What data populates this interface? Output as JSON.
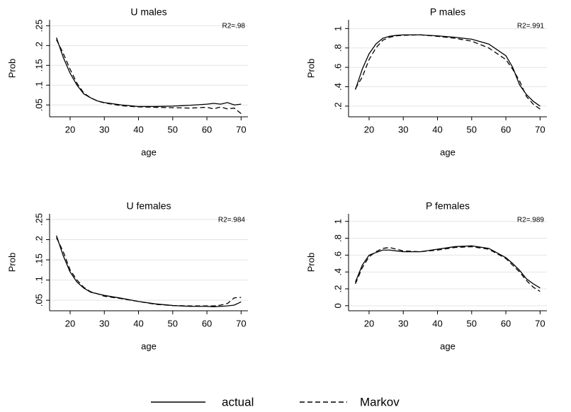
{
  "chart_data": [
    {
      "type": "line",
      "title": "U males",
      "annotation": "R2=.98",
      "xlabel": "age",
      "ylabel": "Prob",
      "x": [
        16,
        18,
        20,
        22,
        24,
        26,
        28,
        30,
        35,
        40,
        45,
        50,
        55,
        60,
        62,
        64,
        66,
        68,
        70
      ],
      "series": [
        {
          "name": "actual",
          "color": "#000000",
          "dash": "solid",
          "values": [
            0.22,
            0.17,
            0.13,
            0.1,
            0.078,
            0.068,
            0.06,
            0.056,
            0.05,
            0.046,
            0.046,
            0.047,
            0.049,
            0.052,
            0.054,
            0.052,
            0.056,
            0.05,
            0.052
          ]
        },
        {
          "name": "Markov",
          "color": "#000000",
          "dash": "dashed",
          "values": [
            0.215,
            0.18,
            0.14,
            0.105,
            0.08,
            0.068,
            0.06,
            0.055,
            0.048,
            0.045,
            0.044,
            0.043,
            0.042,
            0.044,
            0.04,
            0.045,
            0.04,
            0.042,
            0.028
          ]
        }
      ],
      "xlim": [
        14,
        72
      ],
      "xticks": [
        20,
        30,
        40,
        50,
        60,
        70
      ],
      "ylim": [
        0.02,
        0.265
      ],
      "yticks": [
        {
          "value": 0.05,
          "label": ".05"
        },
        {
          "value": 0.1,
          "label": ".1"
        },
        {
          "value": 0.15,
          "label": ".15"
        },
        {
          "value": 0.2,
          "label": ".2"
        },
        {
          "value": 0.25,
          "label": ".25"
        }
      ],
      "grid": true
    },
    {
      "type": "line",
      "title": "P males",
      "annotation": "R2=.991",
      "xlabel": "age",
      "ylabel": "Prob",
      "x": [
        16,
        18,
        20,
        22,
        24,
        26,
        28,
        30,
        35,
        40,
        45,
        50,
        55,
        60,
        62,
        64,
        66,
        68,
        70
      ],
      "series": [
        {
          "name": "actual",
          "color": "#000000",
          "dash": "solid",
          "values": [
            0.37,
            0.58,
            0.74,
            0.84,
            0.9,
            0.92,
            0.93,
            0.935,
            0.935,
            0.925,
            0.91,
            0.89,
            0.84,
            0.72,
            0.6,
            0.42,
            0.32,
            0.25,
            0.2
          ]
        },
        {
          "name": "Markov",
          "color": "#000000",
          "dash": "dashed",
          "values": [
            0.38,
            0.5,
            0.68,
            0.8,
            0.88,
            0.91,
            0.925,
            0.93,
            0.935,
            0.92,
            0.9,
            0.87,
            0.8,
            0.68,
            0.58,
            0.46,
            0.3,
            0.22,
            0.17
          ]
        }
      ],
      "xlim": [
        14,
        72
      ],
      "xticks": [
        20,
        30,
        40,
        50,
        60,
        70
      ],
      "ylim": [
        0.09,
        1.09
      ],
      "yticks": [
        {
          "value": 0.2,
          "label": ".2"
        },
        {
          "value": 0.4,
          "label": ".4"
        },
        {
          "value": 0.6,
          "label": ".6"
        },
        {
          "value": 0.8,
          "label": ".8"
        },
        1
      ],
      "grid": true
    },
    {
      "type": "line",
      "title": "U females",
      "annotation": "R2=.984",
      "xlabel": "age",
      "ylabel": "Prob",
      "x": [
        16,
        18,
        20,
        22,
        24,
        26,
        28,
        30,
        35,
        40,
        45,
        50,
        55,
        60,
        62,
        64,
        66,
        68,
        70
      ],
      "series": [
        {
          "name": "actual",
          "color": "#000000",
          "dash": "solid",
          "values": [
            0.21,
            0.16,
            0.12,
            0.095,
            0.08,
            0.07,
            0.066,
            0.062,
            0.055,
            0.047,
            0.041,
            0.037,
            0.035,
            0.035,
            0.034,
            0.035,
            0.036,
            0.038,
            0.046
          ]
        },
        {
          "name": "Markov",
          "color": "#000000",
          "dash": "dashed",
          "values": [
            0.205,
            0.17,
            0.125,
            0.1,
            0.082,
            0.071,
            0.066,
            0.06,
            0.054,
            0.047,
            0.04,
            0.037,
            0.036,
            0.036,
            0.036,
            0.038,
            0.042,
            0.056,
            0.057
          ]
        }
      ],
      "xlim": [
        14,
        72
      ],
      "xticks": [
        20,
        30,
        40,
        50,
        60,
        70
      ],
      "ylim": [
        0.024,
        0.264
      ],
      "yticks": [
        {
          "value": 0.05,
          "label": ".05"
        },
        {
          "value": 0.1,
          "label": ".1"
        },
        {
          "value": 0.15,
          "label": ".15"
        },
        {
          "value": 0.2,
          "label": ".2"
        },
        {
          "value": 0.25,
          "label": ".25"
        }
      ],
      "grid": true
    },
    {
      "type": "line",
      "title": "P females",
      "annotation": "R2=.989",
      "xlabel": "age",
      "ylabel": "Prob",
      "x": [
        16,
        18,
        20,
        22,
        24,
        26,
        28,
        30,
        35,
        40,
        45,
        50,
        55,
        60,
        62,
        64,
        66,
        68,
        70
      ],
      "series": [
        {
          "name": "actual",
          "color": "#000000",
          "dash": "solid",
          "values": [
            0.28,
            0.48,
            0.6,
            0.63,
            0.66,
            0.66,
            0.65,
            0.64,
            0.64,
            0.67,
            0.7,
            0.71,
            0.68,
            0.57,
            0.5,
            0.42,
            0.32,
            0.26,
            0.21
          ]
        },
        {
          "name": "Markov",
          "color": "#000000",
          "dash": "dashed",
          "values": [
            0.26,
            0.45,
            0.58,
            0.64,
            0.68,
            0.69,
            0.67,
            0.65,
            0.64,
            0.66,
            0.69,
            0.7,
            0.67,
            0.56,
            0.48,
            0.4,
            0.3,
            0.22,
            0.17
          ]
        }
      ],
      "xlim": [
        14,
        72
      ],
      "xticks": [
        20,
        30,
        40,
        50,
        60,
        70
      ],
      "ylim": [
        -0.06,
        1.09
      ],
      "yticks": [
        0,
        {
          "value": 0.2,
          "label": ".2"
        },
        {
          "value": 0.4,
          "label": ".4"
        },
        {
          "value": 0.6,
          "label": ".6"
        },
        {
          "value": 0.8,
          "label": ".8"
        },
        1
      ],
      "grid": true
    }
  ]
}
